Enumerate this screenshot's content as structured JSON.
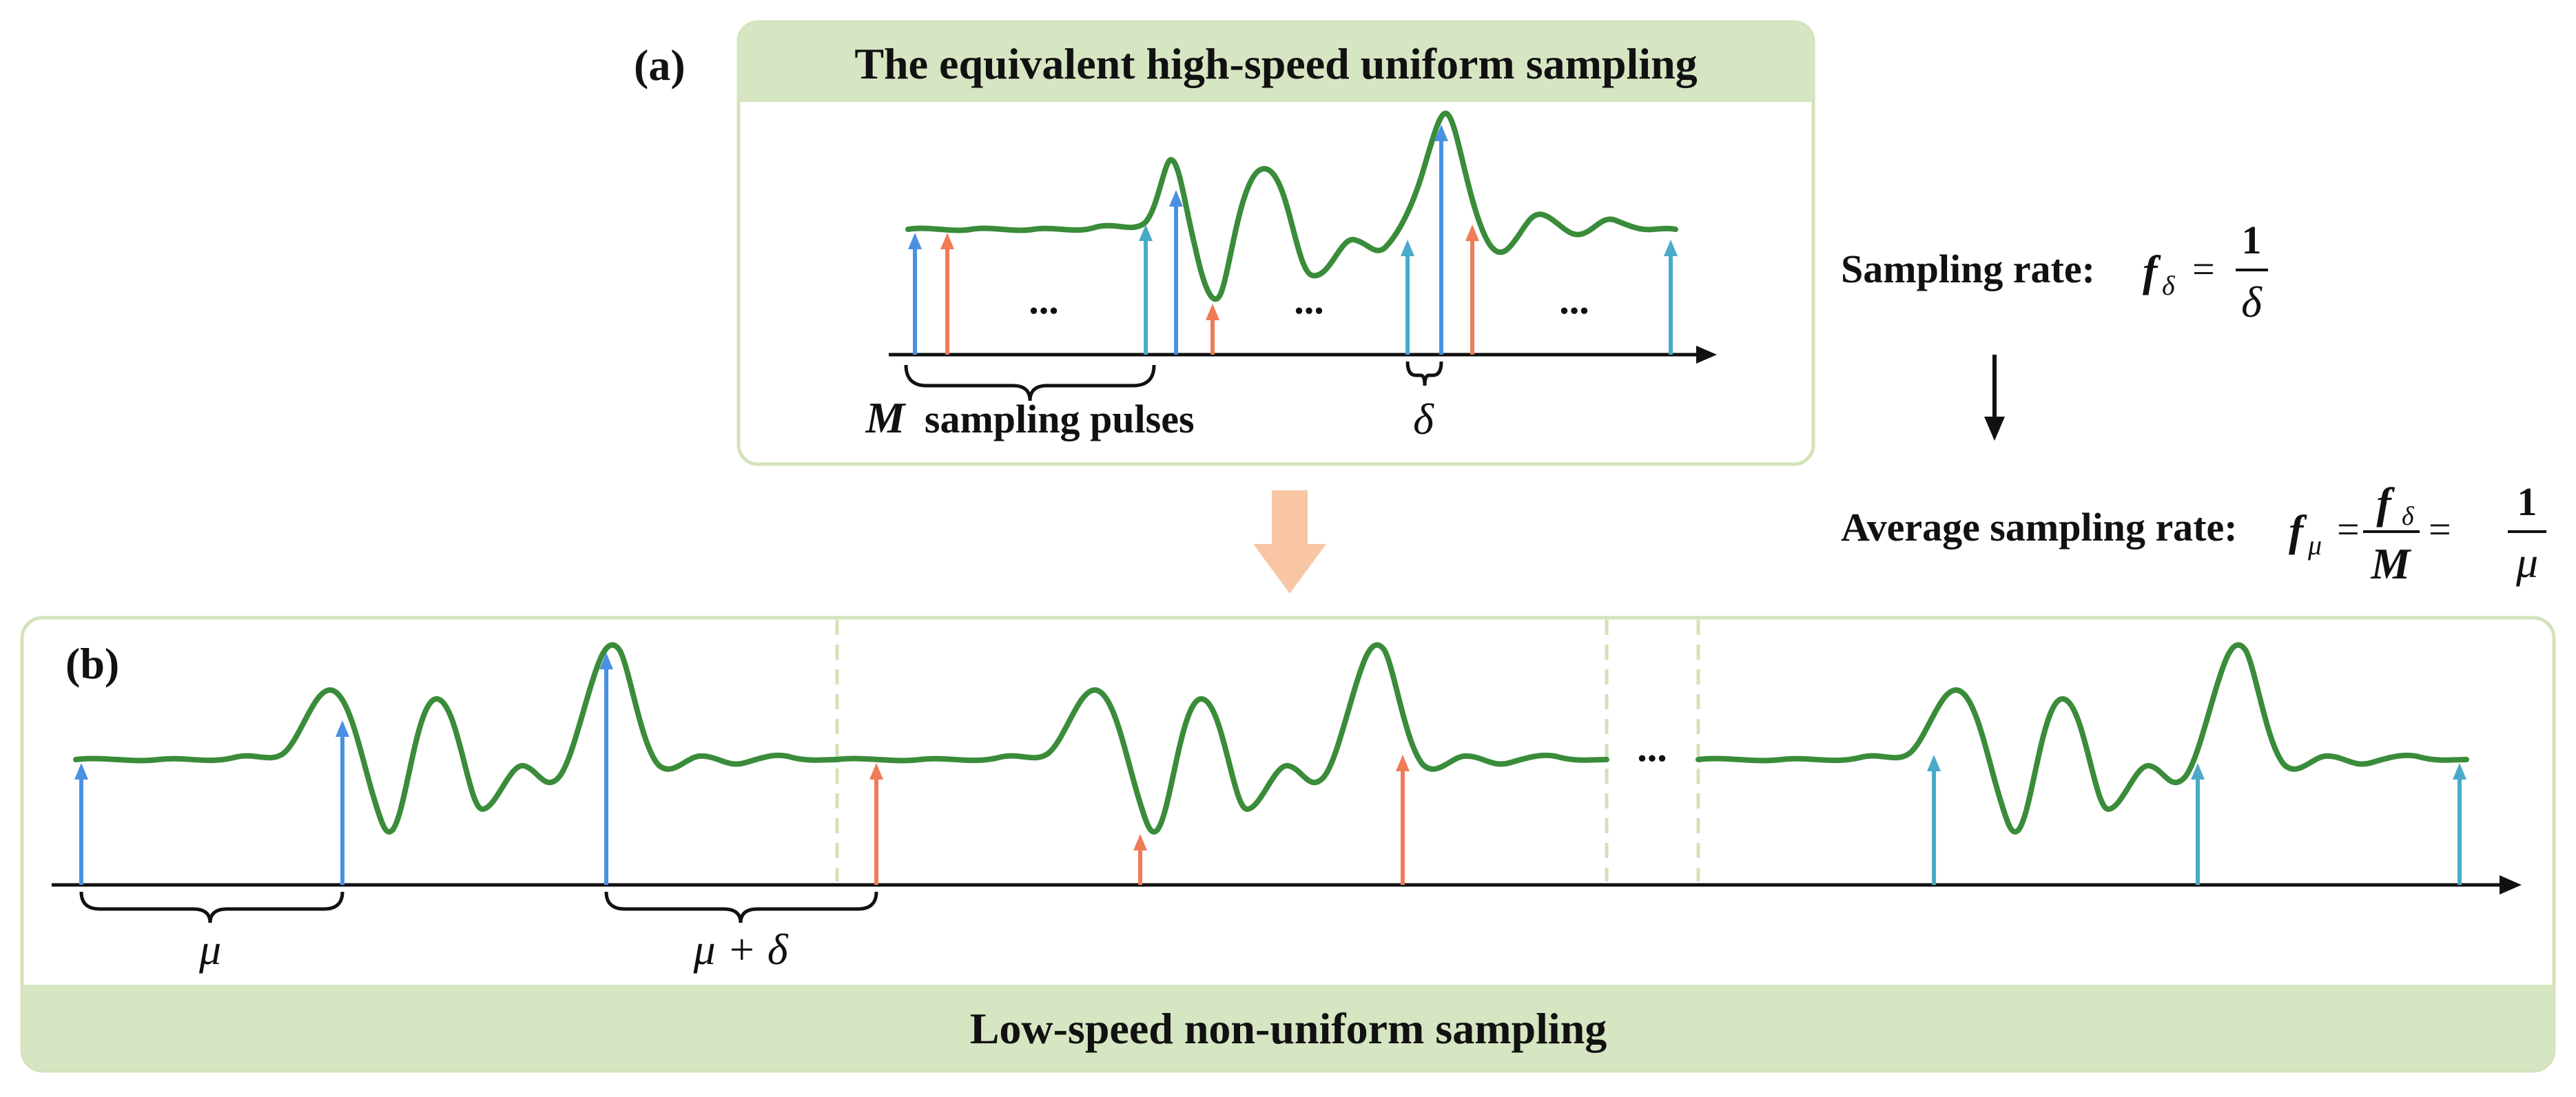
{
  "panel_a": {
    "tag": "(a)",
    "title": "The equivalent high-speed uniform sampling",
    "ellipsis": [
      "...",
      "...",
      "..."
    ],
    "brace_label_var": "M",
    "brace_label_text": "sampling pulses",
    "delta_label": "δ"
  },
  "panel_b": {
    "tag": "(b)",
    "footer": "Low-speed non-uniform sampling",
    "mu_label": "μ",
    "mu_delta_label": "μ + δ",
    "ellipsis": "..."
  },
  "formulas": {
    "sampling_rate_text": "Sampling rate:",
    "f": "f",
    "sub_delta": "δ",
    "eq": "=",
    "one": "1",
    "delta": "δ",
    "average_text": "Average sampling rate:",
    "sub_mu": "μ",
    "M": "M",
    "mu": "μ"
  },
  "colors": {
    "signal": "#3a8c3a",
    "pulse_blue": "#4a90e2",
    "pulse_orange": "#ef7b57",
    "pulse_teal": "#4aaac8",
    "panel_border": "#d3e3b9",
    "panel_fill": "#d6e5c2",
    "down_arrow": "#f8c6a5"
  }
}
